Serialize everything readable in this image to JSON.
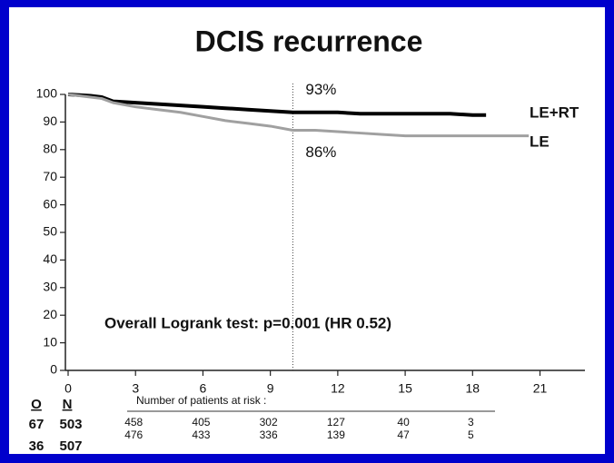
{
  "chart_data": {
    "type": "line",
    "title": "DCIS recurrence",
    "xlim": [
      0,
      23
    ],
    "ylim": [
      0,
      100
    ],
    "xticks": [
      0,
      3,
      6,
      9,
      12,
      15,
      18,
      21
    ],
    "yticks": [
      0,
      10,
      20,
      30,
      40,
      50,
      60,
      70,
      80,
      90,
      100
    ],
    "series": [
      {
        "name": "LE+RT",
        "color": "#000000",
        "x": [
          0,
          1,
          1.5,
          2,
          3,
          4,
          5,
          6,
          7,
          8,
          9,
          10,
          11,
          12,
          13,
          14,
          15,
          16,
          17,
          18,
          18.6
        ],
        "values": [
          100,
          99.5,
          99,
          97.5,
          97,
          96.5,
          96,
          95.5,
          95,
          94.5,
          94,
          93.5,
          93.5,
          93.5,
          93,
          93,
          93,
          93,
          93,
          92.5,
          92.5
        ]
      },
      {
        "name": "LE",
        "color": "#a0a0a0",
        "x": [
          0,
          1,
          1.5,
          2,
          3,
          4,
          5,
          6,
          7,
          8,
          9,
          10,
          11,
          12,
          13,
          14,
          15,
          16,
          17,
          18,
          19,
          20.5
        ],
        "values": [
          100,
          99,
          98.5,
          97,
          95.5,
          94.5,
          93.5,
          92,
          90.5,
          89.5,
          88.5,
          87,
          87,
          86.5,
          86,
          85.5,
          85,
          85,
          85,
          85,
          85,
          85
        ]
      }
    ],
    "reference_line": {
      "x": 10
    },
    "annotations": [
      {
        "label": "93%",
        "value": 93
      },
      {
        "label": "86%",
        "value": 86
      }
    ],
    "test_text": "Overall Logrank test: p=0.001 (HR 0.52)",
    "risk_table": {
      "caption": "Number of patients at risk :",
      "columns": [
        "O",
        "N"
      ],
      "rows": [
        {
          "O": "67",
          "N": "503",
          "counts": [
            "458",
            "405",
            "302",
            "127",
            "40",
            "3"
          ]
        },
        {
          "O": "36",
          "N": "507",
          "counts": [
            "476",
            "433",
            "336",
            "139",
            "47",
            "5"
          ]
        }
      ]
    }
  }
}
